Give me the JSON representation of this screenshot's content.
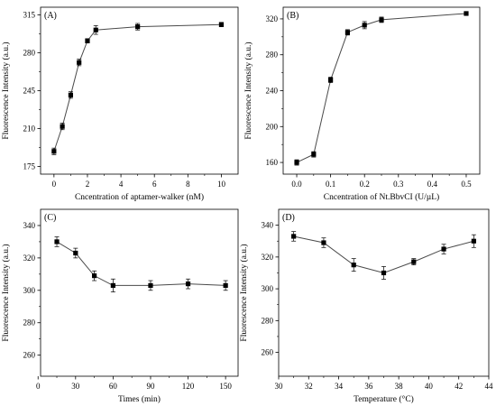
{
  "figure": {
    "colors": {
      "ink": "#000000",
      "line": "#4a4a4a",
      "background": "#ffffff"
    }
  },
  "chart_data": [
    {
      "type": "line",
      "panel_label": "(A)",
      "xlabel": "Cncentration of aptamer-walker (nM)",
      "ylabel": "Fluorescence Intensity (a.u.)",
      "xlim": [
        -0.8,
        11
      ],
      "ylim": [
        168,
        322
      ],
      "xticks": [
        0,
        2,
        4,
        6,
        8,
        10
      ],
      "yticks": [
        175,
        210,
        245,
        280,
        315
      ],
      "minor_xticks": [
        1,
        3,
        5,
        7,
        9
      ],
      "minor_yticks": [
        192.5,
        227.5,
        262.5,
        297.5
      ],
      "grid": false,
      "series": [
        {
          "x": [
            0,
            0.5,
            1,
            1.5,
            2,
            2.5,
            5,
            10
          ],
          "y": [
            189,
            212,
            241,
            271,
            291,
            301,
            304,
            306
          ],
          "err": [
            3,
            3,
            3,
            3,
            2,
            4,
            3,
            2
          ]
        }
      ]
    },
    {
      "type": "line",
      "panel_label": "(B)",
      "xlabel": "Cncentration of Nt.BbvCI (U/µL)",
      "ylabel": "Fluorescence Intensity (a.u.)",
      "xlim": [
        -0.04,
        0.54
      ],
      "ylim": [
        147,
        333
      ],
      "xticks": [
        0.0,
        0.1,
        0.2,
        0.3,
        0.4,
        0.5
      ],
      "yticks": [
        160,
        200,
        240,
        280,
        320
      ],
      "xtick_labels": [
        "0.0",
        "0.1",
        "0.2",
        "0.3",
        "0.4",
        "0.5"
      ],
      "minor_xticks": [
        0.05,
        0.15,
        0.25,
        0.35,
        0.45
      ],
      "minor_yticks": [
        180,
        220,
        260,
        300
      ],
      "grid": false,
      "series": [
        {
          "x": [
            0.0,
            0.05,
            0.1,
            0.15,
            0.2,
            0.25,
            0.5
          ],
          "y": [
            160,
            169,
            252,
            305,
            313,
            319,
            326
          ],
          "err": [
            3,
            3,
            3,
            3,
            4,
            3,
            2
          ]
        }
      ]
    },
    {
      "type": "line",
      "panel_label": "(C)",
      "xlabel": "Times (min)",
      "ylabel": "Fluorescence Intensity (a.u.)",
      "xlim": [
        2,
        160
      ],
      "ylim": [
        247,
        350
      ],
      "xticks": [
        0,
        30,
        60,
        90,
        120,
        150
      ],
      "yticks": [
        260,
        280,
        300,
        320,
        340
      ],
      "minor_xticks": [
        15,
        45,
        75,
        105,
        135
      ],
      "minor_yticks": [
        270,
        290,
        310,
        330
      ],
      "grid": false,
      "series": [
        {
          "x": [
            15,
            30,
            45,
            60,
            90,
            120,
            150
          ],
          "y": [
            330,
            323,
            309,
            303,
            303,
            304,
            303
          ],
          "err": [
            3,
            3,
            3,
            4,
            3,
            3,
            3
          ]
        }
      ]
    },
    {
      "type": "line",
      "panel_label": "(D)",
      "xlabel": "Temperature (°C)",
      "ylabel": "Fluorescence Intensity (a.u.)",
      "xlim": [
        30,
        44
      ],
      "ylim": [
        245,
        350
      ],
      "xticks": [
        30,
        32,
        34,
        36,
        38,
        40,
        42,
        44
      ],
      "yticks": [
        260,
        280,
        300,
        320,
        340
      ],
      "minor_xticks": [
        31,
        33,
        35,
        37,
        39,
        41,
        43
      ],
      "minor_yticks": [
        270,
        290,
        310,
        330
      ],
      "grid": false,
      "series": [
        {
          "x": [
            31,
            33,
            35,
            37,
            39,
            41,
            43
          ],
          "y": [
            333,
            329,
            315,
            310,
            317,
            325,
            330
          ],
          "err": [
            3,
            3,
            4,
            4,
            2,
            3,
            4
          ]
        }
      ]
    }
  ]
}
